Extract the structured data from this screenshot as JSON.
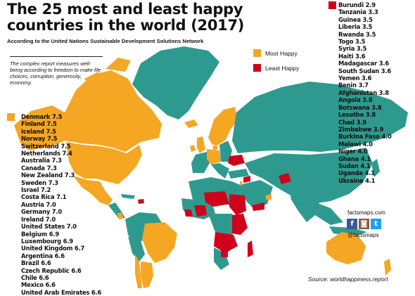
{
  "title": "The 25 most and least happy countries in the world (2017)",
  "subtitle": "According to the United Nations Sustainable Development Solutions Network",
  "note": "The complex report measures well-being according to freedom to make life choices, corruption, generosity, economy.",
  "legend": {
    "most_label": "Most Happy",
    "least_label": "Least Happy"
  },
  "colors": {
    "most_happy": "#f5a623",
    "least_happy": "#d0021b",
    "other": "#2e9a8f"
  },
  "most_happy": [
    "Denmark 7.5",
    "Finland 7.5",
    "Iceland 7.5",
    "Norway 7.5",
    "Switzerland 7.5",
    "Netherlands 7.4",
    "Australia 7.3",
    "Canada 7.3",
    "New Zealand 7.3",
    "Sweden 7.3",
    "Israel 7.2",
    "Costa Rica 7.1",
    "Austria 7.0",
    "Germany 7.0",
    "Ireland 7.0",
    "United States 7.0",
    "Belgium 6.9",
    "Luxembourg 6.9",
    "United Kingdom 6.7",
    "Argentina 6.6",
    "Brazil 6.6",
    "Czech Republic 6.6",
    "Chile 6.6",
    "Mexico 6.6",
    "United Arab Emirates 6.6"
  ],
  "least_happy": [
    "Burundi 2.9",
    "Tanzania 3.3",
    "Guinea 3.5",
    "Liberia 3.5",
    "Rwanda 3.5",
    "Togo 3.5",
    "Syria 3.5",
    "Haiti 3.6",
    "Madagascar 3.6",
    "South Sudan 3.6",
    "Yemen 3.6",
    "Benin 3.7",
    "Afghanistan 3.8",
    "Angola 3.8",
    "Botswana 3.8",
    "Lesotho 3.8",
    "Chad 3.9",
    "Zimbabwe 3.9",
    "Burkina Faso 4.0",
    "Malawi 4.0",
    "Niger 4.0",
    "Ghana 4.1",
    "Sudan 4.1",
    "Uganda 4.1",
    "Ukraine 4.1"
  ],
  "branding": {
    "website": "factsmaps.com",
    "handle": "@factsmaps",
    "icons": [
      "facebook-icon",
      "instagram-icon",
      "twitter-icon"
    ]
  },
  "source": "Source: worldhappiness.report"
}
